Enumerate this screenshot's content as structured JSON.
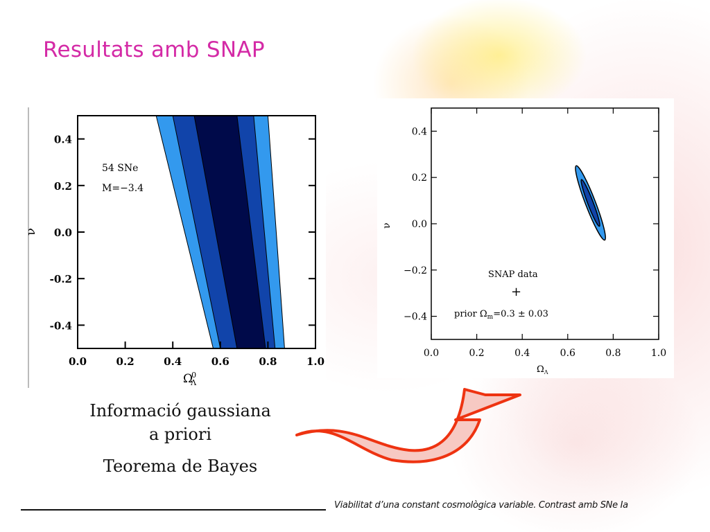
{
  "slide": {
    "title": "Resultats amb SNAP",
    "caption_line1": "Informació gaussiana",
    "caption_line2": "a priori",
    "caption_line3": "Teorema de Bayes",
    "footer": "Viabilitat d’una constant cosmològica variable. Contrast amb SNe Ia"
  },
  "colors": {
    "title": "#d42aa6",
    "contour_outer": "#3399ee",
    "contour_middle": "#1144aa",
    "contour_inner": "#000a4a",
    "arrow_fill": "#f7c9c3",
    "arrow_stroke": "#ee3311"
  },
  "chart_data": [
    {
      "type": "contour",
      "xlabel": "Ω",
      "xlabel_sup": "0",
      "xlabel_sub": "Λ",
      "ylabel": "ν",
      "xlim": [
        0.0,
        1.0
      ],
      "ylim": [
        -0.5,
        0.5
      ],
      "x_ticks": [
        "0.0",
        "0.2",
        "0.4",
        "0.6",
        "0.8",
        "1.0"
      ],
      "y_ticks": [
        "0.4",
        "0.2",
        "0.0",
        "-0.2",
        "-0.4"
      ],
      "annotations": [
        "54 SNe",
        "M=−3.4"
      ],
      "bands": [
        {
          "level": "outer",
          "top_x": [
            0.33,
            0.8
          ],
          "bottom_x": [
            0.57,
            0.87
          ]
        },
        {
          "level": "middle",
          "top_x": [
            0.4,
            0.74
          ],
          "bottom_x": [
            0.6,
            0.83
          ]
        },
        {
          "level": "inner",
          "top_x": [
            0.49,
            0.67
          ],
          "bottom_x": [
            0.67,
            0.79
          ]
        }
      ]
    },
    {
      "type": "contour",
      "xlabel": "Ω",
      "xlabel_sub": "Λ",
      "ylabel": "ν",
      "xlim": [
        0.0,
        1.0
      ],
      "ylim": [
        -0.5,
        0.5
      ],
      "x_ticks": [
        "0.0",
        "0.2",
        "0.4",
        "0.6",
        "0.8",
        "1.0"
      ],
      "y_ticks": [
        "0.4",
        "0.2",
        "0.0",
        "−0.2",
        "−0.4"
      ],
      "annotations": [
        "SNAP data",
        "+",
        "prior Ω",
        "m",
        "=0.3 ± 0.03"
      ],
      "ellipses": [
        {
          "level": "outer",
          "cx": 0.7,
          "cy": 0.09,
          "semi_major": 0.175,
          "semi_minor": 0.022,
          "angle_deg": -69
        },
        {
          "level": "inner",
          "cx": 0.7,
          "cy": 0.09,
          "semi_major": 0.11,
          "semi_minor": 0.012,
          "angle_deg": -69
        }
      ]
    }
  ]
}
